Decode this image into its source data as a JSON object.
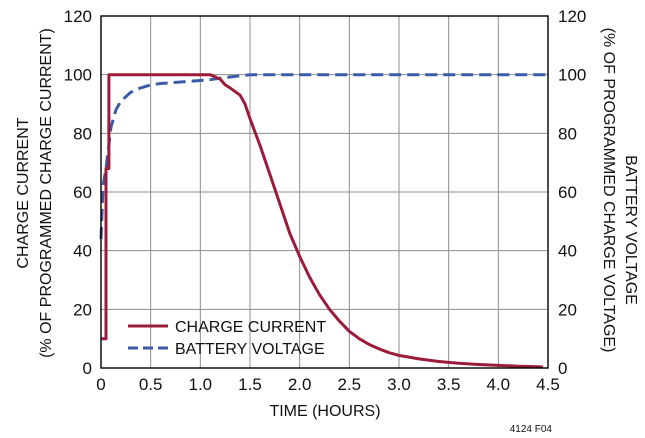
{
  "chart_data": {
    "type": "line",
    "xlabel": "TIME (HOURS)",
    "ylabel_left": [
      "CHARGE CURRENT",
      "(% OF PROGRAMMED CHARGE CURRENT)"
    ],
    "ylabel_right": [
      "BATTERY VOLTAGE",
      "(% OF PROGRAMMED CHARGE VOLTAGE)"
    ],
    "xlim": [
      0,
      4.5
    ],
    "ylim": [
      0,
      120
    ],
    "x_ticks": [
      "0",
      "0.5",
      "1.0",
      "1.5",
      "2.0",
      "2.5",
      "3.0",
      "3.5",
      "4.0",
      "4.5"
    ],
    "y_ticks_left": [
      "0",
      "20",
      "40",
      "60",
      "80",
      "100",
      "120"
    ],
    "y_ticks_right": [
      "0",
      "20",
      "40",
      "60",
      "80",
      "100",
      "120"
    ],
    "grid": true,
    "legend_position": "bottom-left",
    "series": [
      {
        "name": "CHARGE CURRENT",
        "color": "#9b1b3a",
        "style": "solid",
        "x": [
          0,
          0.05,
          0.05,
          0.08,
          0.08,
          0.5,
          1.0,
          1.1,
          1.2,
          1.25,
          1.3,
          1.4,
          1.45,
          1.5,
          1.6,
          1.7,
          1.8,
          1.9,
          2.0,
          2.1,
          2.2,
          2.3,
          2.4,
          2.5,
          2.6,
          2.7,
          2.8,
          2.9,
          3.0,
          3.2,
          3.4,
          3.6,
          3.8,
          4.0,
          4.2,
          4.4,
          4.45
        ],
        "y": [
          10,
          10,
          68,
          68,
          100,
          100,
          100,
          100,
          98.5,
          96.5,
          95.5,
          93,
          90,
          85,
          76,
          66,
          56,
          46,
          38,
          31,
          25,
          20,
          16,
          12.5,
          10,
          8,
          6.5,
          5.2,
          4.3,
          3.1,
          2.2,
          1.6,
          1.2,
          0.9,
          0.6,
          0.4,
          0.3
        ]
      },
      {
        "name": "BATTERY VOLTAGE",
        "color": "#3a5ca8",
        "style": "dashed",
        "x": [
          0,
          0.02,
          0.05,
          0.08,
          0.1,
          0.15,
          0.2,
          0.3,
          0.4,
          0.5,
          0.6,
          0.8,
          1.0,
          1.1,
          1.2,
          1.3,
          1.4,
          1.5,
          2.0,
          3.0,
          4.0,
          4.5
        ],
        "y": [
          44,
          62,
          68,
          76,
          82,
          88,
          91,
          94,
          95.5,
          96.5,
          97,
          97.5,
          98,
          98.3,
          98.8,
          99.2,
          99.6,
          100,
          100,
          100,
          100,
          100
        ]
      }
    ]
  },
  "figure_code": "4124 F04"
}
